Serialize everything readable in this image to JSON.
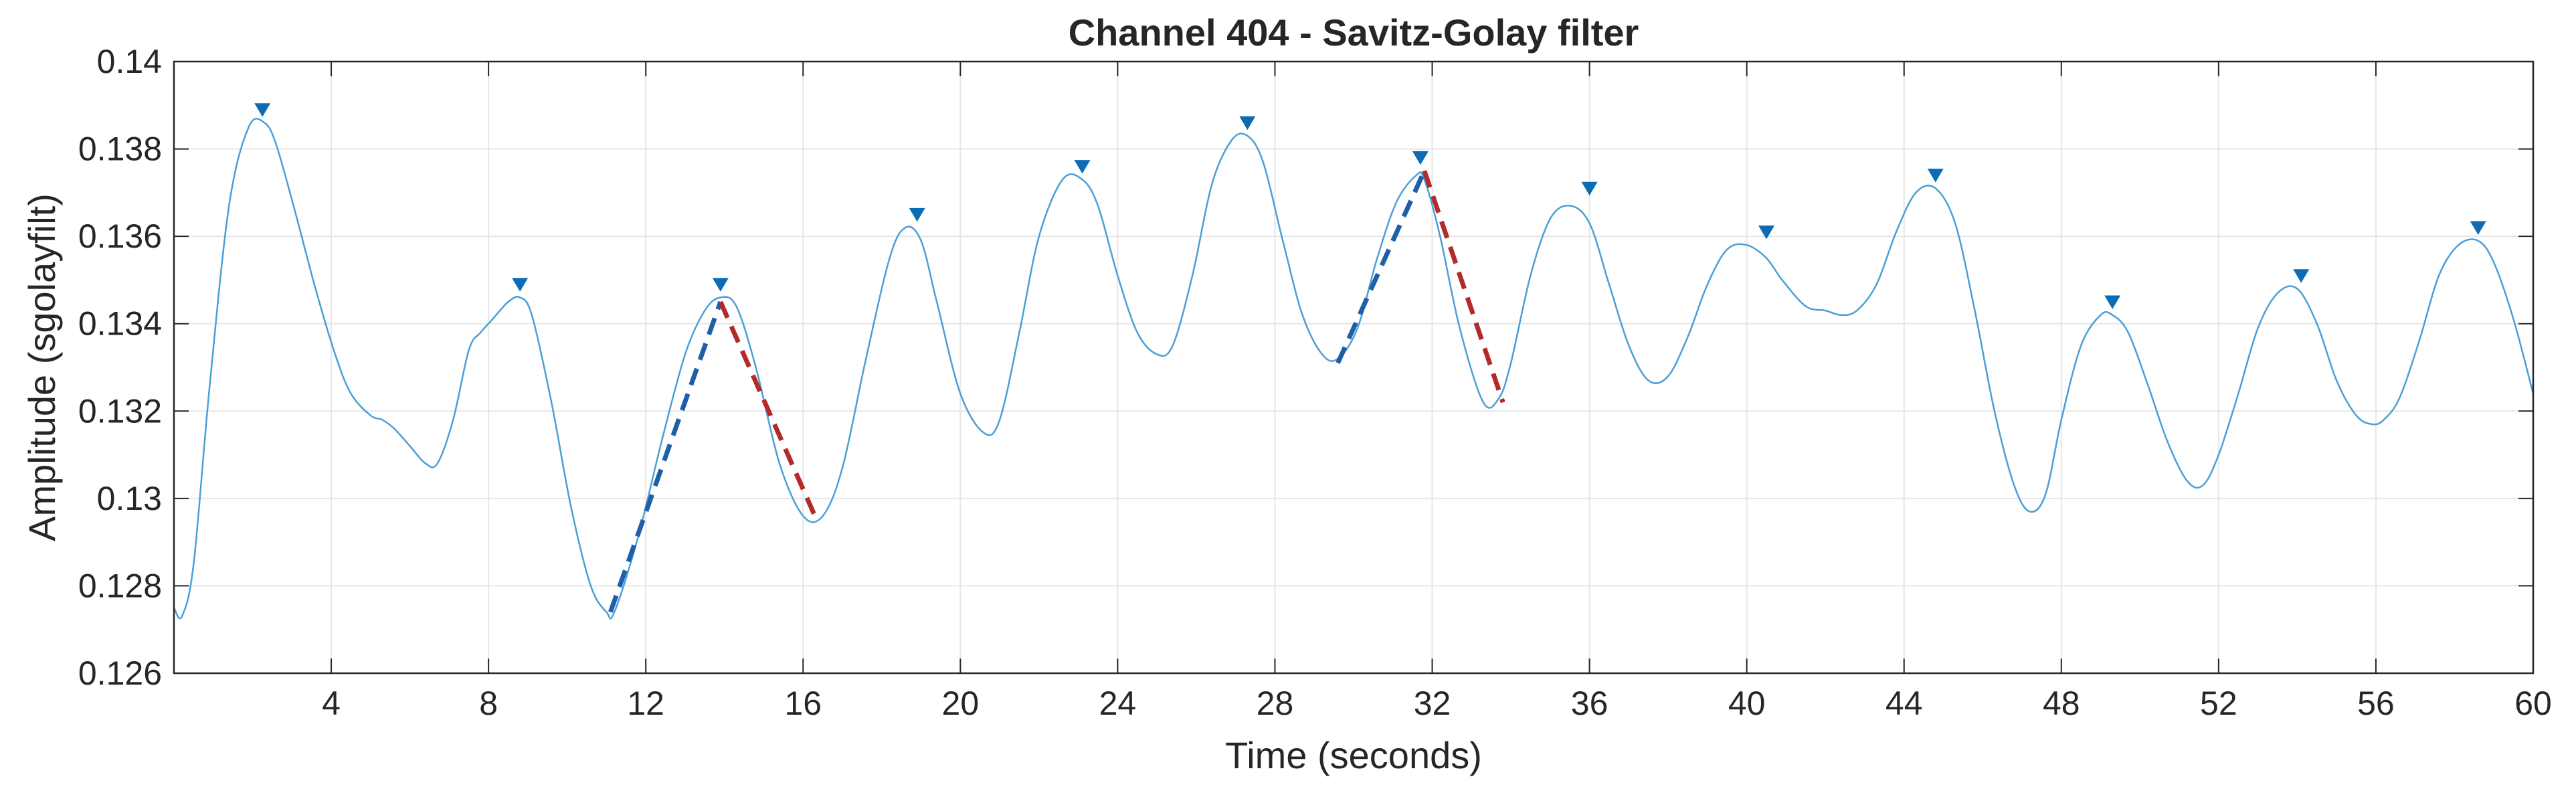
{
  "chart_data": {
    "type": "line",
    "title": "Channel 404 - Savitz-Golay filter",
    "xlabel": "Time (seconds)",
    "ylabel": "Amplitude (sgolayfilt)",
    "xlim": [
      0,
      60
    ],
    "ylim": [
      0.126,
      0.14
    ],
    "xticks": [
      4,
      8,
      12,
      16,
      20,
      24,
      28,
      32,
      36,
      40,
      44,
      48,
      52,
      56,
      60
    ],
    "yticks": [
      0.126,
      0.128,
      0.13,
      0.132,
      0.134,
      0.136,
      0.138,
      0.14
    ],
    "ytick_labels": [
      "0.126",
      "0.128",
      "0.13",
      "0.132",
      "0.134",
      "0.136",
      "0.138",
      "0.14"
    ],
    "grid": true,
    "colors": {
      "signal": "#4a9fd8",
      "peak_marker": "#0b6bb5",
      "rise_segment": "#1f5fa8",
      "fall_segment": "#b22a2a",
      "grid": "#e6e6e6",
      "axes": "#262626"
    },
    "series": [
      {
        "role": "signal",
        "x": [
          0,
          0.2,
          0.5,
          0.9,
          1.4,
          1.9,
          2.3,
          2.6,
          3.1,
          3.6,
          4.1,
          4.5,
          5.0,
          5.3,
          5.6,
          6.0,
          6.4,
          6.7,
          7.1,
          7.5,
          7.8,
          8.1,
          8.5,
          8.8,
          9.1,
          9.6,
          10.1,
          10.6,
          11.0,
          11.2,
          11.8,
          12.4,
          13.0,
          13.5,
          13.9,
          14.3,
          14.8,
          15.4,
          16.0,
          16.5,
          17.0,
          17.6,
          18.2,
          18.6,
          19.0,
          19.4,
          20.0,
          20.6,
          21.0,
          21.5,
          22.0,
          22.6,
          23.1,
          23.5,
          24.0,
          24.5,
          25.0,
          25.4,
          25.9,
          26.4,
          26.9,
          27.3,
          27.7,
          28.2,
          28.7,
          29.2,
          29.6,
          30.1,
          30.6,
          31.1,
          31.6,
          31.8,
          32.2,
          32.7,
          33.3,
          33.7,
          34.0,
          34.5,
          35.0,
          35.5,
          36.0,
          36.5,
          37.0,
          37.5,
          38.0,
          38.5,
          39.0,
          39.5,
          40.0,
          40.5,
          40.9,
          41.5,
          42.0,
          42.4,
          42.8,
          43.3,
          43.8,
          44.3,
          44.8,
          45.3,
          45.8,
          46.3,
          46.8,
          47.2,
          47.6,
          48.0,
          48.5,
          49.0,
          49.3,
          49.7,
          50.2,
          50.7,
          51.2,
          51.6,
          52.0,
          52.5,
          53.0,
          53.5,
          54.0,
          54.5,
          55.0,
          55.5,
          55.9,
          56.2,
          56.6,
          57.1,
          57.6,
          58.1,
          58.6,
          59.0,
          59.5,
          60.0
        ],
        "y": [
          0.1275,
          0.1273,
          0.1285,
          0.1325,
          0.1367,
          0.1385,
          0.1386,
          0.1381,
          0.1365,
          0.1348,
          0.1333,
          0.1324,
          0.1319,
          0.1318,
          0.1316,
          0.1312,
          0.1308,
          0.1308,
          0.1318,
          0.1334,
          0.1338,
          0.1341,
          0.1345,
          0.1346,
          0.1342,
          0.1322,
          0.1298,
          0.128,
          0.1274,
          0.1274,
          0.1291,
          0.1313,
          0.1333,
          0.1343,
          0.1346,
          0.1344,
          0.133,
          0.1308,
          0.1296,
          0.1296,
          0.1307,
          0.1332,
          0.1355,
          0.1362,
          0.1359,
          0.1345,
          0.1324,
          0.1315,
          0.1318,
          0.1338,
          0.136,
          0.1373,
          0.1373,
          0.1367,
          0.1351,
          0.1338,
          0.1333,
          0.1335,
          0.1351,
          0.1372,
          0.1382,
          0.1383,
          0.1377,
          0.1359,
          0.1342,
          0.1333,
          0.1332,
          0.1339,
          0.1355,
          0.1368,
          0.1374,
          0.1373,
          0.136,
          0.1339,
          0.1322,
          0.1323,
          0.1331,
          0.1351,
          0.1364,
          0.1367,
          0.1363,
          0.1349,
          0.1335,
          0.1327,
          0.1328,
          0.1337,
          0.1349,
          0.1357,
          0.1358,
          0.1355,
          0.135,
          0.1344,
          0.1343,
          0.1342,
          0.1343,
          0.1349,
          0.1361,
          0.137,
          0.1371,
          0.1363,
          0.1343,
          0.132,
          0.1303,
          0.1297,
          0.1301,
          0.1318,
          0.1335,
          0.1342,
          0.1342,
          0.1338,
          0.1326,
          0.1313,
          0.1304,
          0.1303,
          0.131,
          0.1324,
          0.1339,
          0.1347,
          0.1348,
          0.134,
          0.1327,
          0.1319,
          0.1317,
          0.1318,
          0.1323,
          0.1336,
          0.1351,
          0.1358,
          0.1359,
          0.1354,
          0.1341,
          0.1324
        ]
      }
    ],
    "peaks": {
      "x": [
        2.25,
        8.8,
        13.9,
        18.9,
        23.1,
        27.3,
        31.7,
        36.0,
        40.5,
        44.8,
        49.3,
        54.1,
        58.6
      ],
      "y": [
        0.1389,
        0.1349,
        0.1349,
        0.1365,
        0.1376,
        0.1386,
        0.1378,
        0.1371,
        0.1361,
        0.1374,
        0.1345,
        0.1351,
        0.1362
      ]
    },
    "slope_segments": [
      {
        "kind": "rise",
        "x": [
          11.1,
          13.9
        ],
        "y": [
          0.1274,
          0.1345
        ]
      },
      {
        "kind": "fall",
        "x": [
          13.9,
          16.3
        ],
        "y": [
          0.1345,
          0.1296
        ]
      },
      {
        "kind": "rise",
        "x": [
          29.6,
          31.8
        ],
        "y": [
          0.1331,
          0.1375
        ]
      },
      {
        "kind": "fall",
        "x": [
          31.8,
          33.8
        ],
        "y": [
          0.1375,
          0.1322
        ]
      }
    ]
  }
}
